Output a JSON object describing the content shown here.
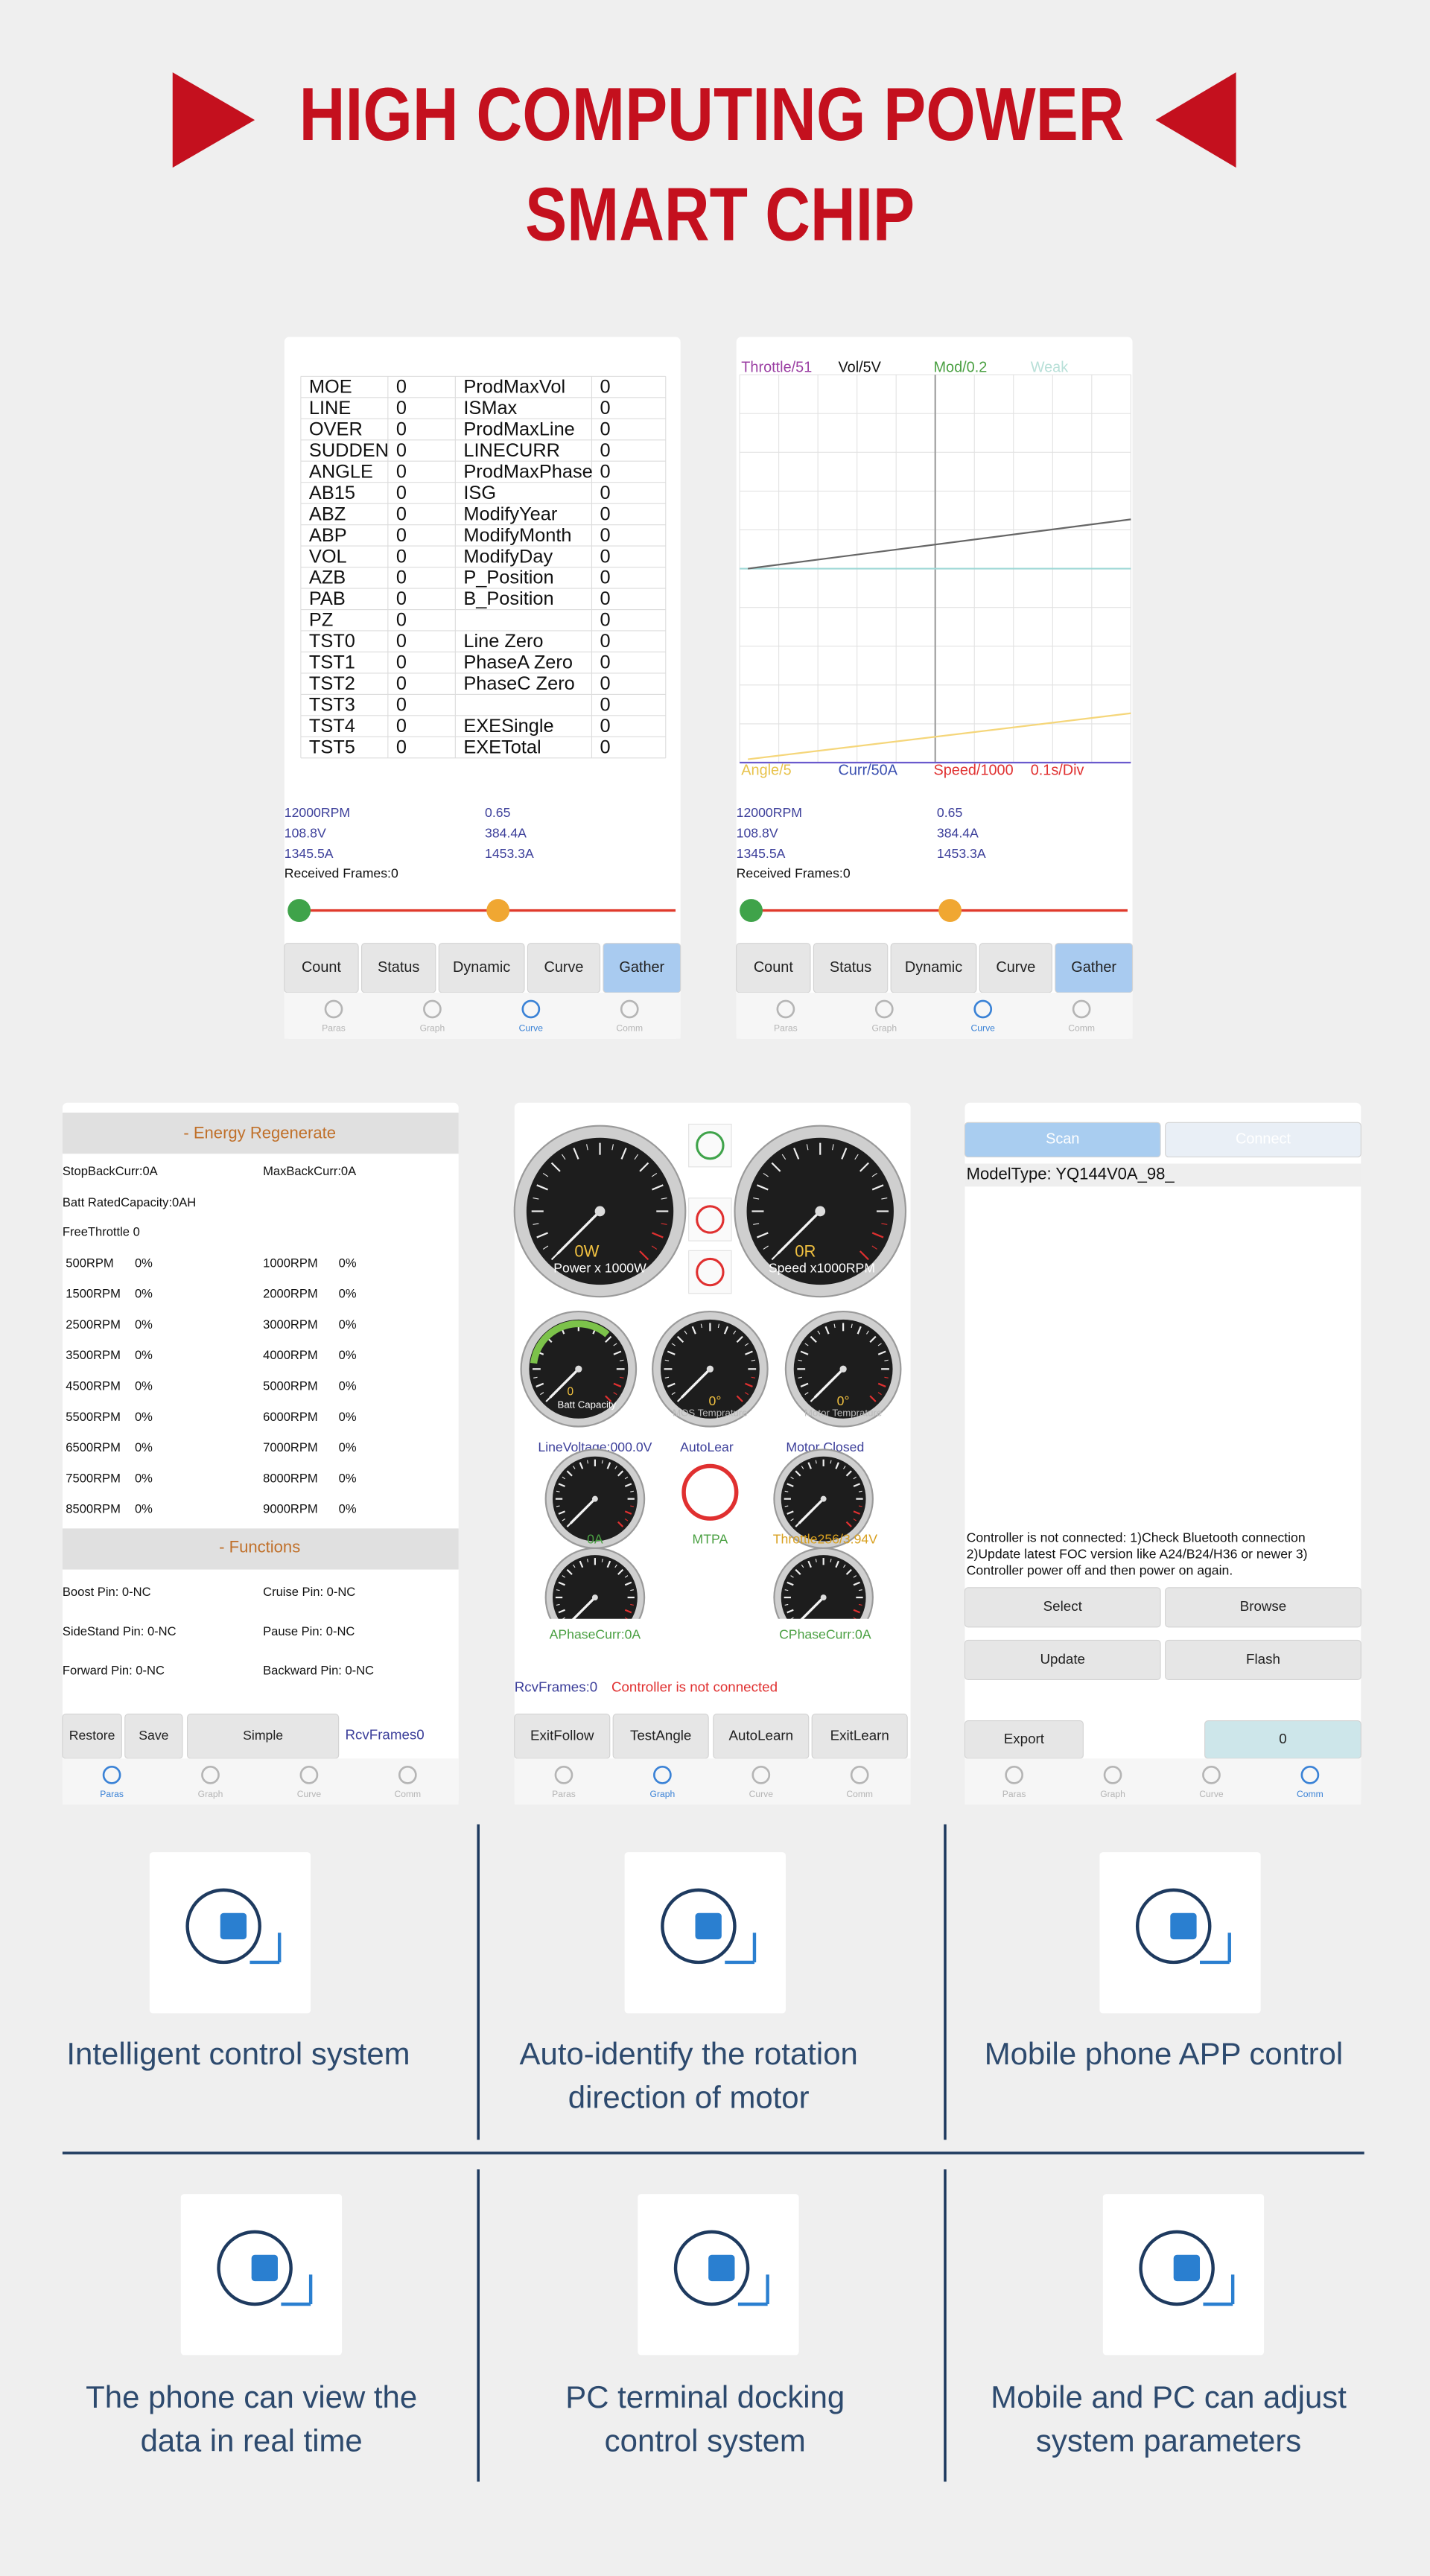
{
  "header": {
    "line1": "HIGH COMPUTING POWER",
    "line2": "SMART CHIP"
  },
  "params": {
    "rows": [
      [
        "MOE",
        0,
        "ProdMaxVol",
        0
      ],
      [
        "LINE",
        0,
        "ISMax",
        0
      ],
      [
        "OVER",
        0,
        "ProdMaxLine",
        0
      ],
      [
        "SUDDEN",
        0,
        "LINECURR",
        0
      ],
      [
        "ANGLE",
        0,
        "ProdMaxPhase",
        0
      ],
      [
        "AB15",
        0,
        "ISG",
        0
      ],
      [
        "ABZ",
        0,
        "ModifyYear",
        0
      ],
      [
        "ABP",
        0,
        "ModifyMonth",
        0
      ],
      [
        "VOL",
        0,
        "ModifyDay",
        0
      ],
      [
        "AZB",
        0,
        "P_Position",
        0
      ],
      [
        "PAB",
        0,
        "B_Position",
        0
      ],
      [
        "PZ",
        0,
        null,
        0
      ],
      [
        "TST0",
        0,
        "Line Zero",
        0
      ],
      [
        "TST1",
        0,
        "PhaseA Zero",
        0
      ],
      [
        "TST2",
        0,
        "PhaseC Zero",
        0
      ],
      [
        "TST3",
        0,
        null,
        0
      ],
      [
        "TST4",
        0,
        "EXESingle",
        0
      ],
      [
        "TST5",
        0,
        "EXETotal",
        0
      ]
    ]
  },
  "stats": [
    "12000RPM",
    "0.65",
    "108.8V",
    "384.4A",
    "1345.5A",
    "1453.3A"
  ],
  "received": "Received Frames:0",
  "top_buttons": [
    "Count",
    "Status",
    "Dynamic",
    "Curve",
    "Gather"
  ],
  "tabs": [
    "Paras",
    "Graph",
    "Curve",
    "Comm"
  ],
  "curve": {
    "top": [
      "Throttle/51",
      "Vol/5V",
      "Mod/0.2",
      "Weak"
    ],
    "bottom": [
      "Angle/5",
      "Curr/50A",
      "Speed/1000",
      "0.1s/Div"
    ]
  },
  "energy": {
    "title": "- Energy Regenerate",
    "fields": [
      "StopBackCurr:0A",
      "MaxBackCurr:0A",
      "Batt RatedCapacity:0AH",
      "FreeThrottle   0"
    ],
    "rpm_rows": [
      [
        "500RPM",
        "0%",
        "1000RPM",
        "0%"
      ],
      [
        "1500RPM",
        "0%",
        "2000RPM",
        "0%"
      ],
      [
        "2500RPM",
        "0%",
        "3000RPM",
        "0%"
      ],
      [
        "3500RPM",
        "0%",
        "4000RPM",
        "0%"
      ],
      [
        "4500RPM",
        "0%",
        "5000RPM",
        "0%"
      ],
      [
        "5500RPM",
        "0%",
        "6000RPM",
        "0%"
      ],
      [
        "6500RPM",
        "0%",
        "7000RPM",
        "0%"
      ],
      [
        "7500RPM",
        "0%",
        "8000RPM",
        "0%"
      ],
      [
        "8500RPM",
        "0%",
        "9000RPM",
        "0%"
      ]
    ],
    "functions_title": "- Functions",
    "pins": [
      "Boost Pin: 0-NC",
      "Cruise Pin: 0-NC",
      "SideStand Pin: 0-NC",
      "Pause Pin: 0-NC",
      "Forward Pin: 0-NC",
      "Backward Pin: 0-NC"
    ],
    "buttons": [
      "Restore",
      "Save",
      "Simple"
    ],
    "frames": "RcvFrames0"
  },
  "dashboard": {
    "power_value": "0W",
    "power_label": "Power x 1000W",
    "speed_value": "0R",
    "speed_label": "Speed x1000RPM",
    "batt_value": "0",
    "batt_label": "Batt Capacity",
    "mos_value": "0°",
    "mos_label": "MOS Temprature",
    "motor_value": "0°",
    "motor_label": "Motor Temprature",
    "line_voltage": "LineVoltage:000.0V",
    "autolear": "AutoLear",
    "motor_closed": "Motor Closed",
    "current": "0A",
    "mtpa": "MTPA",
    "throttle": "Throttle256/3.94V",
    "aphase": "APhaseCurr:0A",
    "cphase": "CPhaseCurr:0A",
    "frames": "RcvFrames:0",
    "status": "Controller is not connected",
    "buttons": [
      "ExitFollow",
      "TestAngle",
      "AutoLearn",
      "ExitLearn"
    ]
  },
  "comm": {
    "scan": "Scan",
    "connect": "Connect",
    "model": "ModelType: YQ144V0A_98_",
    "message": [
      "Controller is not connected:  1)Check Bluetooth connection",
      "2)Update latest FOC version like A24/B24/H36 or newer 3)",
      "Controller power off and then power on again."
    ],
    "buttons": [
      "Select",
      "Browse",
      "Update",
      "Flash"
    ],
    "export": "Export",
    "count": "0"
  },
  "features": [
    {
      "lines": [
        "Intelligent control system"
      ]
    },
    {
      "lines": [
        "Auto-identify the rotation",
        "direction of motor"
      ]
    },
    {
      "lines": [
        "Mobile phone APP control"
      ]
    },
    {
      "lines": [
        "The phone can view the",
        "data in real time"
      ]
    },
    {
      "lines": [
        "PC terminal docking",
        "control system"
      ]
    },
    {
      "lines": [
        "Mobile and PC can adjust",
        "system parameters"
      ]
    }
  ]
}
